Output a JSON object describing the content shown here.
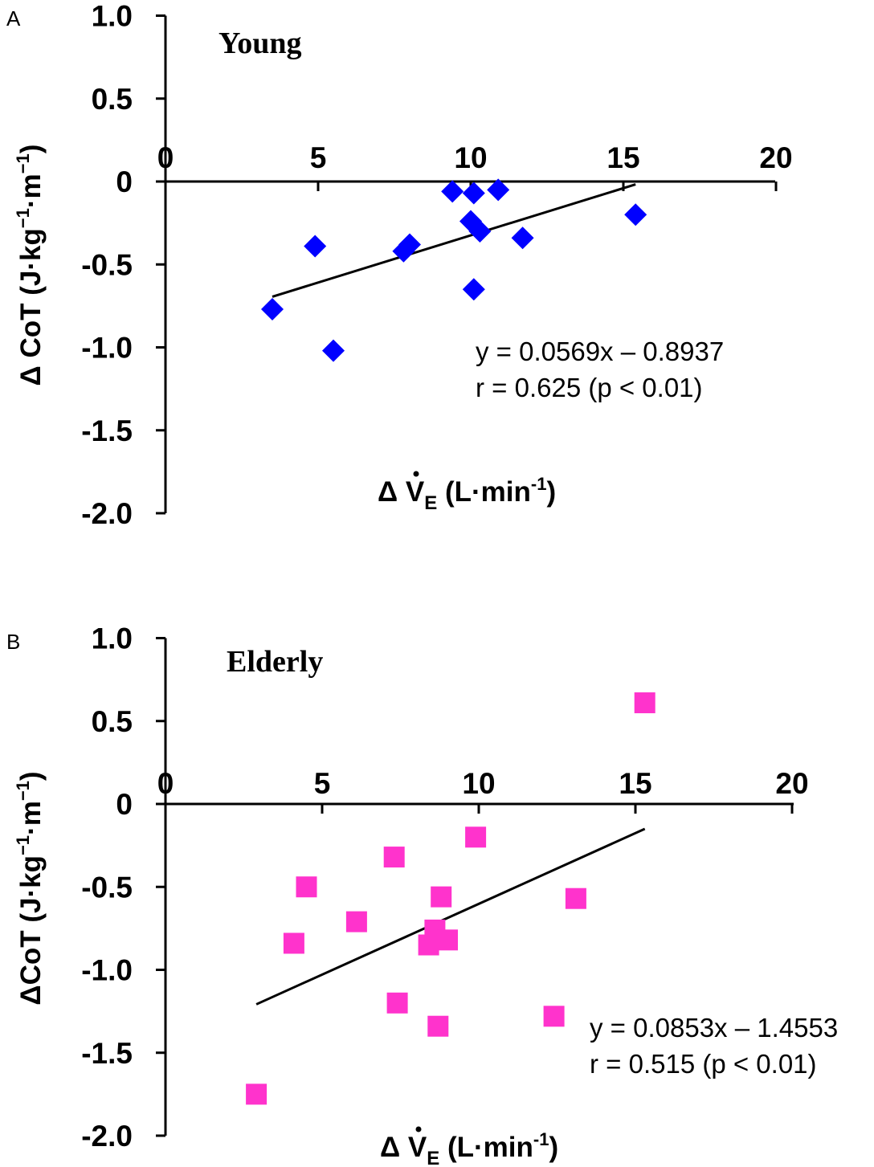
{
  "chart_data": [
    {
      "type": "scatter",
      "panel": "A",
      "title": "Young",
      "xlabel_prefix": "Δ",
      "xlabel_var": "V",
      "xlabel_sub": "E",
      "xlabel_unit": "(L·min",
      "xlabel_exp": "-1",
      "xlabel_close": ")",
      "ylabel_main": "Δ CoT",
      "ylabel_unit_parts": [
        "(J·kg",
        "−1",
        "·m",
        "−1",
        ")"
      ],
      "xlim": [
        0,
        20
      ],
      "ylim": [
        -2.0,
        1.0
      ],
      "xticks": [
        0,
        5,
        10,
        15,
        20
      ],
      "xtick_labels": [
        "0",
        "5",
        "10",
        "15",
        "20"
      ],
      "yticks": [
        1.0,
        0.5,
        0,
        -0.5,
        -1.0,
        -1.5,
        -2.0
      ],
      "ytick_labels": [
        "1.0",
        "0.5",
        "0",
        "-0.5",
        "-1.0",
        "-1.5",
        "-2.0"
      ],
      "marker": "diamond",
      "color": "#0000ff",
      "points": [
        {
          "x": 3.5,
          "y": -0.77
        },
        {
          "x": 4.9,
          "y": -0.39
        },
        {
          "x": 5.5,
          "y": -1.02
        },
        {
          "x": 7.8,
          "y": -0.42
        },
        {
          "x": 8.0,
          "y": -0.38
        },
        {
          "x": 9.4,
          "y": -0.06
        },
        {
          "x": 10.0,
          "y": -0.24
        },
        {
          "x": 10.1,
          "y": -0.07
        },
        {
          "x": 10.1,
          "y": -0.65
        },
        {
          "x": 10.3,
          "y": -0.3
        },
        {
          "x": 10.9,
          "y": -0.05
        },
        {
          "x": 11.7,
          "y": -0.34
        },
        {
          "x": 15.4,
          "y": -0.2
        }
      ],
      "trendline": {
        "slope": 0.0569,
        "intercept": -0.8937,
        "x_range": [
          3.5,
          15.4
        ]
      },
      "equation": "y = 0.0569x – 0.8937",
      "correlation": "r = 0.625 (p < 0.01)"
    },
    {
      "type": "scatter",
      "panel": "B",
      "title": "Elderly",
      "xlabel_prefix": "Δ",
      "xlabel_var": "V",
      "xlabel_sub": "E",
      "xlabel_unit": "(L·min",
      "xlabel_exp": "-1",
      "xlabel_close": ")",
      "ylabel_main": "ΔCoT",
      "ylabel_unit_parts": [
        "(J·kg",
        "−1",
        "·m",
        "−1",
        ")"
      ],
      "xlim": [
        0,
        20
      ],
      "ylim": [
        -2.0,
        1.0
      ],
      "xticks": [
        0,
        5,
        10,
        15,
        20
      ],
      "xtick_labels": [
        "0",
        "5",
        "10",
        "15",
        "20"
      ],
      "yticks": [
        1.0,
        0.5,
        0,
        -0.5,
        -1.0,
        -1.5,
        -2.0
      ],
      "ytick_labels": [
        "1.0",
        "0.5",
        "0",
        "-0.5",
        "-1.0",
        "-1.5",
        "-2.0"
      ],
      "marker": "square",
      "color": "#ff33cc",
      "points": [
        {
          "x": 2.9,
          "y": -1.75
        },
        {
          "x": 4.1,
          "y": -0.84
        },
        {
          "x": 4.5,
          "y": -0.5
        },
        {
          "x": 6.1,
          "y": -0.71
        },
        {
          "x": 7.3,
          "y": -0.32
        },
        {
          "x": 7.4,
          "y": -1.2
        },
        {
          "x": 8.4,
          "y": -0.85
        },
        {
          "x": 8.6,
          "y": -0.76
        },
        {
          "x": 8.7,
          "y": -1.34
        },
        {
          "x": 8.8,
          "y": -0.56
        },
        {
          "x": 9.0,
          "y": -0.82
        },
        {
          "x": 9.9,
          "y": -0.2
        },
        {
          "x": 12.4,
          "y": -1.28
        },
        {
          "x": 13.1,
          "y": -0.57
        },
        {
          "x": 15.3,
          "y": 0.61
        }
      ],
      "trendline": {
        "slope": 0.0853,
        "intercept": -1.4553,
        "x_range": [
          2.9,
          15.3
        ]
      },
      "equation": "y = 0.0853x – 1.4553",
      "correlation": "r = 0.515 (p < 0.01)"
    }
  ]
}
